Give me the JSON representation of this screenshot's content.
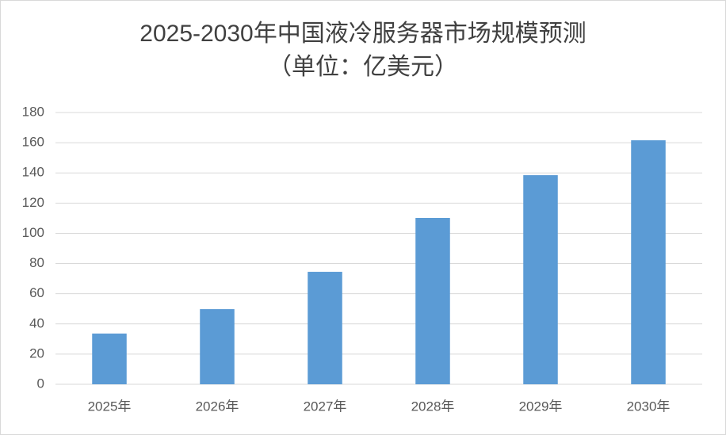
{
  "chart_data": {
    "type": "bar",
    "title": "2025-2030年中国液冷服务器市场规模预测",
    "subtitle": "（单位：亿美元）",
    "categories": [
      "2025年",
      "2026年",
      "2027年",
      "2028年",
      "2029年",
      "2030年"
    ],
    "values": [
      33.6,
      49.8,
      74.5,
      110.2,
      138.5,
      161.6
    ],
    "color": "#5b9bd5",
    "ylim": [
      0,
      180
    ],
    "yticks": [
      0,
      20,
      40,
      60,
      80,
      100,
      120,
      140,
      160,
      180
    ],
    "grid": true
  }
}
